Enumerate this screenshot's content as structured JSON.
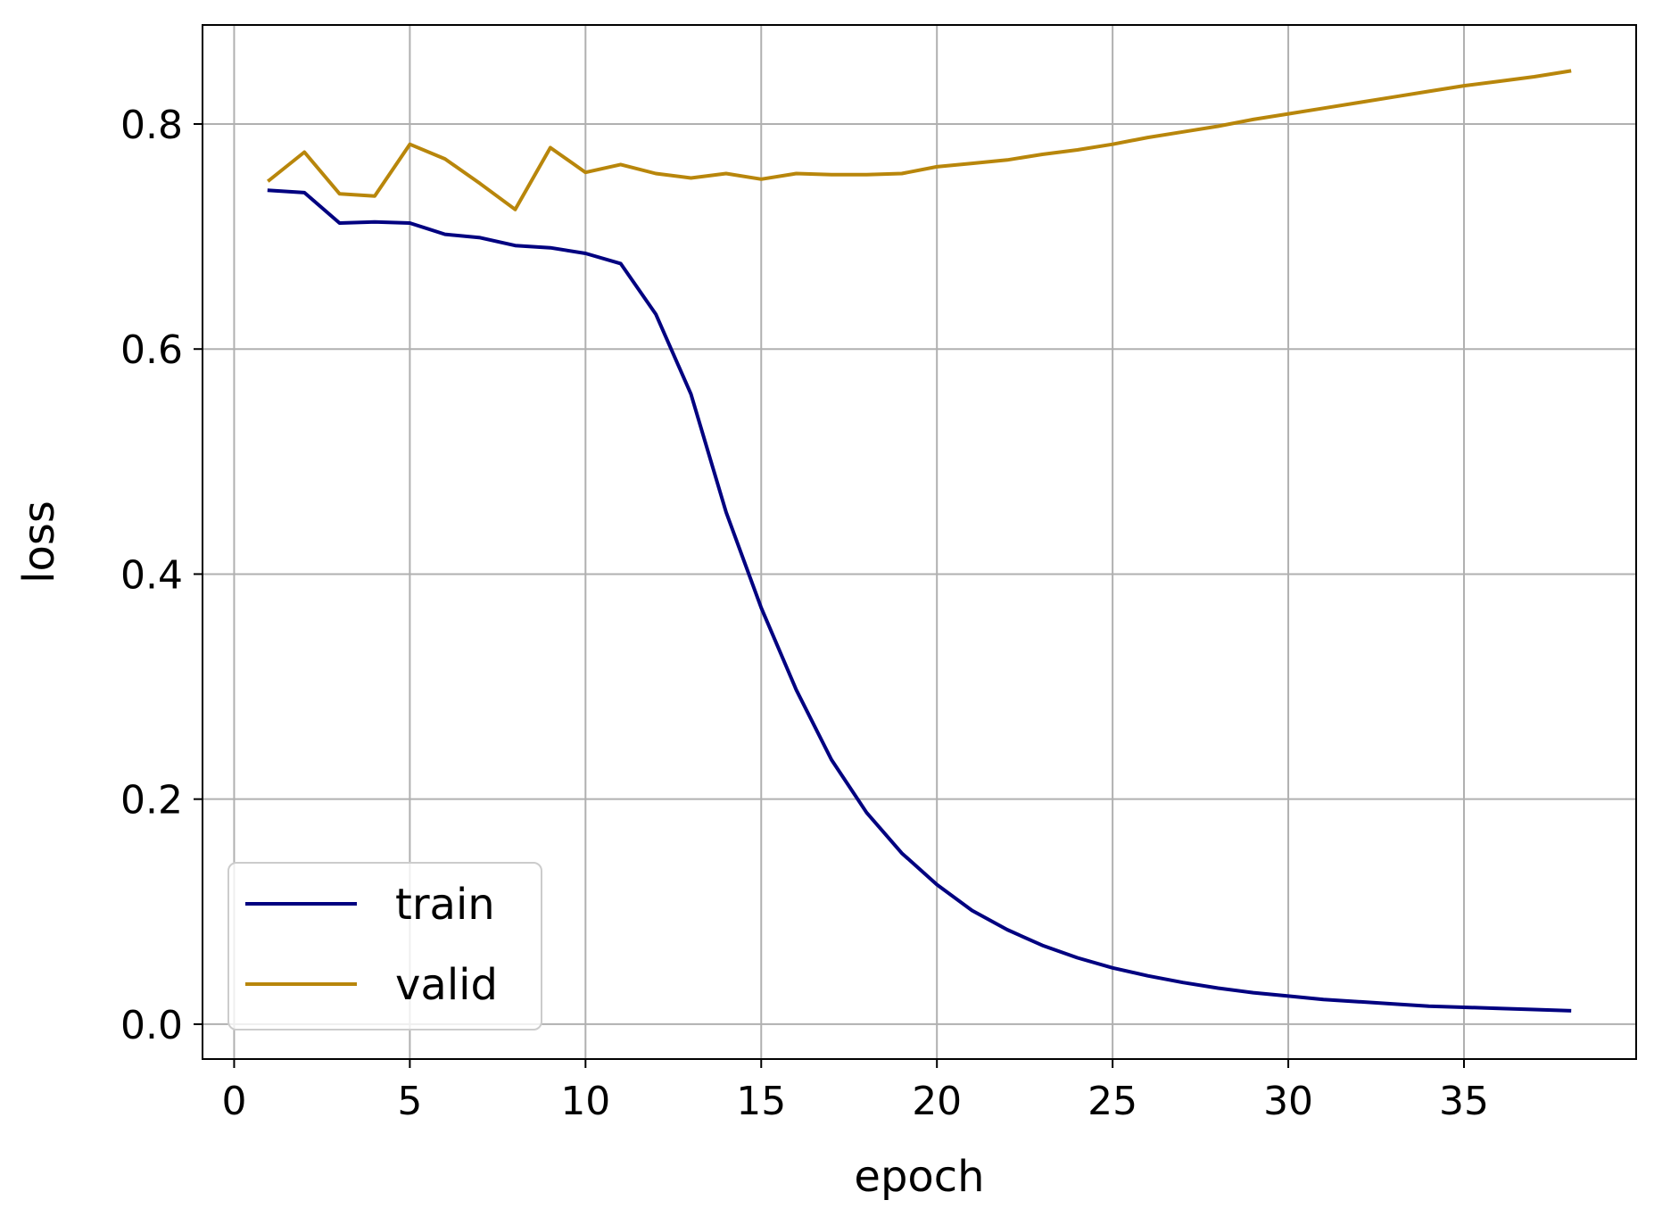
{
  "chart_data": {
    "type": "line",
    "title": "",
    "xlabel": "epoch",
    "ylabel": "loss",
    "xlim": [
      -0.9,
      39.9
    ],
    "ylim": [
      -0.031,
      0.888
    ],
    "xticks": [
      0,
      5,
      10,
      15,
      20,
      25,
      30,
      35
    ],
    "xtick_labels": [
      "0",
      "5",
      "10",
      "15",
      "20",
      "25",
      "30",
      "35"
    ],
    "yticks": [
      0.0,
      0.2,
      0.4,
      0.6,
      0.8
    ],
    "ytick_labels": [
      "0.0",
      "0.2",
      "0.4",
      "0.6",
      "0.8"
    ],
    "grid": true,
    "legend_position": "lower-left",
    "x": [
      1,
      2,
      3,
      4,
      5,
      6,
      7,
      8,
      9,
      10,
      11,
      12,
      13,
      14,
      15,
      16,
      17,
      18,
      19,
      20,
      21,
      22,
      23,
      24,
      25,
      26,
      27,
      28,
      29,
      30,
      31,
      32,
      33,
      34,
      35,
      36,
      37,
      38
    ],
    "series": [
      {
        "name": "train",
        "color": "#000080",
        "values": [
          0.741,
          0.739,
          0.712,
          0.713,
          0.712,
          0.702,
          0.699,
          0.692,
          0.69,
          0.685,
          0.676,
          0.631,
          0.56,
          0.455,
          0.37,
          0.297,
          0.235,
          0.188,
          0.152,
          0.124,
          0.101,
          0.084,
          0.07,
          0.059,
          0.05,
          0.043,
          0.037,
          0.032,
          0.028,
          0.025,
          0.022,
          0.02,
          0.018,
          0.016,
          0.015,
          0.014,
          0.013,
          0.012
        ]
      },
      {
        "name": "valid",
        "color": "#b8860b",
        "values": [
          0.75,
          0.775,
          0.738,
          0.736,
          0.782,
          0.769,
          0.747,
          0.724,
          0.779,
          0.757,
          0.764,
          0.756,
          0.752,
          0.756,
          0.751,
          0.756,
          0.755,
          0.755,
          0.756,
          0.762,
          0.765,
          0.768,
          0.773,
          0.777,
          0.782,
          0.788,
          0.793,
          0.798,
          0.804,
          0.809,
          0.814,
          0.819,
          0.824,
          0.829,
          0.834,
          0.838,
          0.842,
          0.847
        ]
      }
    ]
  }
}
